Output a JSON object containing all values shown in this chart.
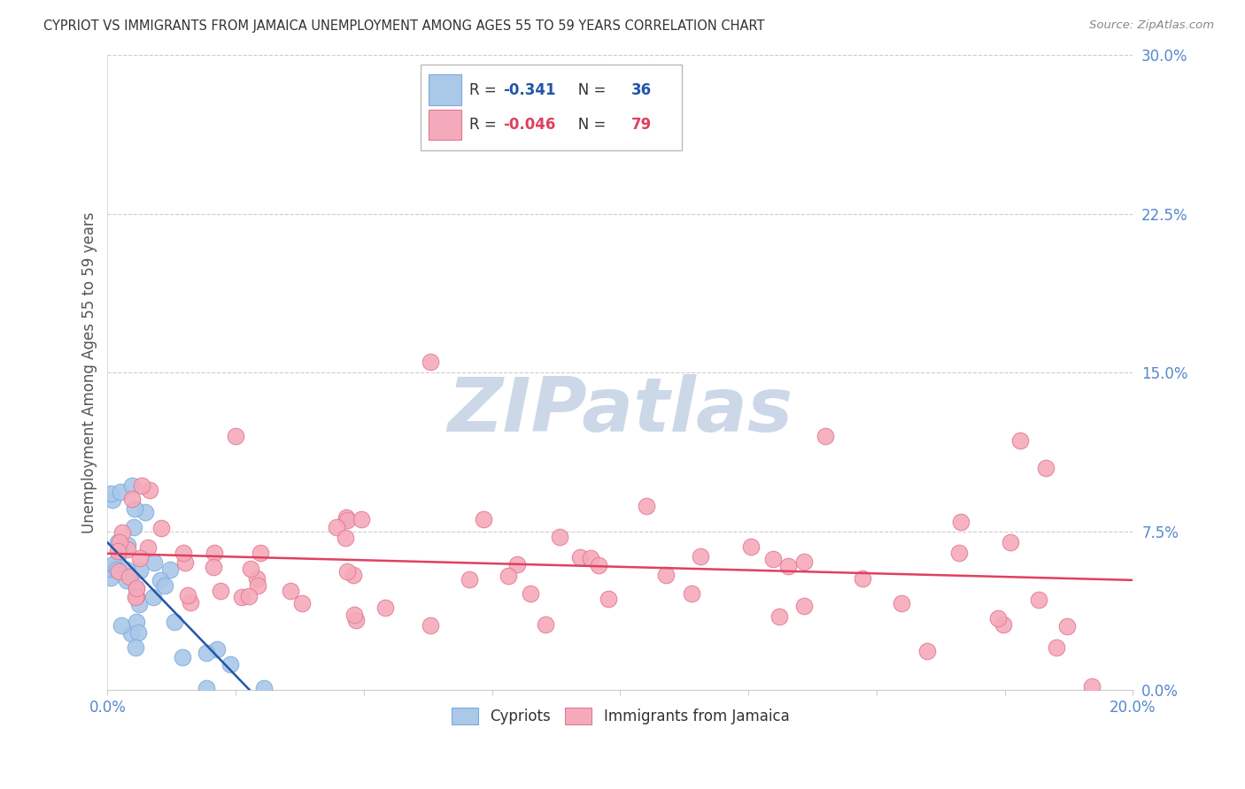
{
  "title": "CYPRIOT VS IMMIGRANTS FROM JAMAICA UNEMPLOYMENT AMONG AGES 55 TO 59 YEARS CORRELATION CHART",
  "source": "Source: ZipAtlas.com",
  "ylabel": "Unemployment Among Ages 55 to 59 years",
  "xlim": [
    0.0,
    0.2
  ],
  "ylim": [
    0.0,
    0.3
  ],
  "yticks": [
    0.0,
    0.075,
    0.15,
    0.225,
    0.3
  ],
  "yticklabels": [
    "0.0%",
    "7.5%",
    "15.0%",
    "22.5%",
    "30.0%"
  ],
  "xticks": [
    0.0,
    0.025,
    0.05,
    0.075,
    0.1,
    0.125,
    0.15,
    0.175,
    0.2
  ],
  "xticklabels": [
    "0.0%",
    "",
    "",
    "",
    "",
    "",
    "",
    "",
    "20.0%"
  ],
  "cypriot_R": -0.341,
  "cypriot_N": 36,
  "jamaica_R": -0.046,
  "jamaica_N": 79,
  "cypriot_color": "#aac8e8",
  "cypriot_edge": "#7aabdc",
  "jamaica_color": "#f5aabb",
  "jamaica_edge": "#e07890",
  "trendline_cypriot_color": "#2255aa",
  "trendline_jamaica_color": "#e04060",
  "trendline_dashed_color": "#bbbbbb",
  "watermark_color": "#ccd8e8",
  "axis_tick_color": "#5588cc",
  "grid_color": "#cccccc",
  "legend_box_color": "#dddddd",
  "ylabel_color": "#555555",
  "title_color": "#333333",
  "source_color": "#888888"
}
